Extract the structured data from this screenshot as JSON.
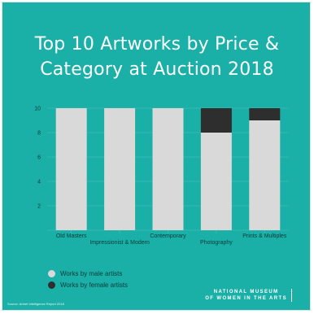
{
  "title_line1": "Top 10 Artworks by Price &",
  "title_line2": "Category at Auction 2018",
  "colors": {
    "background": "#1aafa7",
    "male": "#d9d9d9",
    "female": "#2e2e2e"
  },
  "chart_data": {
    "type": "bar",
    "stacked": true,
    "categories": [
      "Old Masters",
      "Impressionist & Modern",
      "Contemporary",
      "Photography",
      "Prints & Multiples"
    ],
    "series": [
      {
        "name": "Works by male artists",
        "values": [
          10,
          10,
          10,
          8,
          9
        ]
      },
      {
        "name": "Works by female artists",
        "values": [
          0,
          0,
          0,
          2,
          1
        ]
      }
    ],
    "yticks": [
      2,
      4,
      6,
      8,
      10
    ],
    "ylim": [
      0,
      10
    ],
    "grid": true,
    "legend_position": "bottom-left"
  },
  "legend": [
    {
      "label": "Works by male artists"
    },
    {
      "label": "Works by female artists"
    }
  ],
  "source": "Source: Artnet Intelligence Report 2018",
  "logo_line1": "NATIONAL MUSEUM",
  "logo_line2": "OF WOMEN IN THE ARTS"
}
